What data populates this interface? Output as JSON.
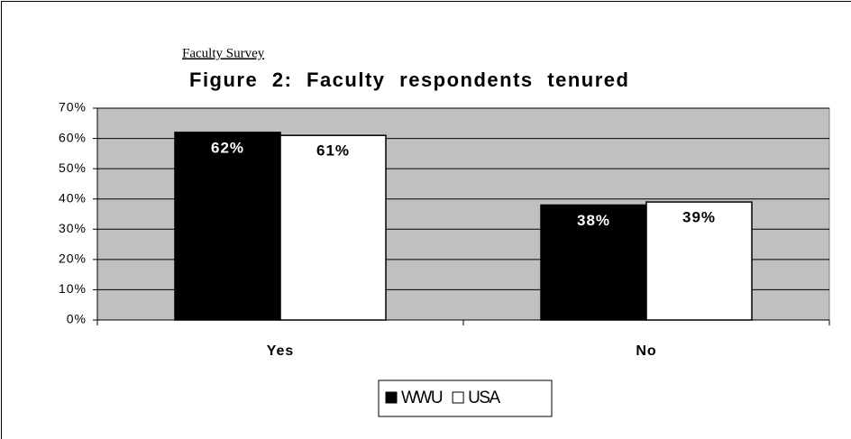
{
  "chart_data": {
    "type": "bar",
    "subtitle": "Faculty Survey",
    "title": "Figure 2: Faculty respondents tenured",
    "categories": [
      "Yes",
      "No"
    ],
    "series": [
      {
        "name": "WWU",
        "color": "#000000",
        "values": [
          62,
          38
        ],
        "value_labels": [
          "62%",
          "38%"
        ]
      },
      {
        "name": "USA",
        "color": "#ffffff",
        "values": [
          61,
          39
        ],
        "value_labels": [
          "61%",
          "39%"
        ]
      }
    ],
    "ylim": [
      0,
      70
    ],
    "yticks": [
      {
        "value": 0,
        "label": "0%"
      },
      {
        "value": 10,
        "label": "10%"
      },
      {
        "value": 20,
        "label": "20%"
      },
      {
        "value": 30,
        "label": "30%"
      },
      {
        "value": 40,
        "label": "40%"
      },
      {
        "value": 50,
        "label": "50%"
      },
      {
        "value": 60,
        "label": "60%"
      },
      {
        "value": 70,
        "label": "70%"
      }
    ],
    "grid": true,
    "plot_background": "#c0c0c0",
    "legend": "bottom"
  }
}
